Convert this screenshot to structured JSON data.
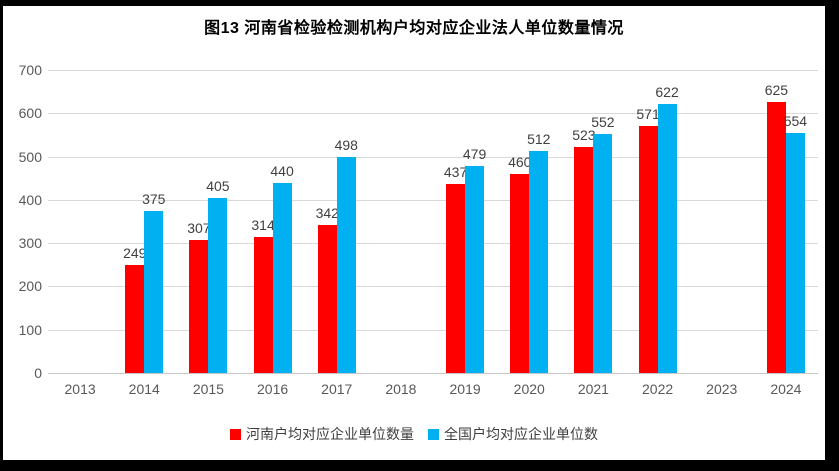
{
  "title": "图13  河南省检验检测机构户均对应企业法人单位数量情况",
  "colors": {
    "henan_series": "#FF0000",
    "national_series": "#00B0F0",
    "gridline": "#D9D9D9",
    "axis_text": "#595959",
    "data_label": "#404040",
    "frame_border": "#000000"
  },
  "chart_data": {
    "type": "bar",
    "title": "图13  河南省检验检测机构户均对应企业法人单位数量情况",
    "categories": [
      "2013",
      "2014",
      "2015",
      "2016",
      "2017",
      "2018",
      "2019",
      "2020",
      "2021",
      "2022",
      "2023",
      "2024"
    ],
    "series": [
      {
        "name": "河南户均对应企业单位数量",
        "color": "#FF0000",
        "values": [
          null,
          249,
          307,
          314,
          342,
          null,
          437,
          460,
          523,
          571,
          null,
          625
        ]
      },
      {
        "name": "全国户均对应企业单位数",
        "color": "#00B0F0",
        "values": [
          null,
          375,
          405,
          440,
          498,
          null,
          479,
          512,
          552,
          622,
          null,
          554
        ]
      }
    ],
    "xlabel": "",
    "ylabel": "",
    "ylim": [
      0,
      700
    ],
    "yticks": [
      0,
      100,
      200,
      300,
      400,
      500,
      600,
      700
    ],
    "grid": true,
    "data_labels": true,
    "legend_position": "bottom"
  },
  "legend": {
    "items": [
      {
        "label": "河南户均对应企业单位数量",
        "color": "#FF0000"
      },
      {
        "label": "全国户均对应企业单位数",
        "color": "#00B0F0"
      }
    ]
  }
}
